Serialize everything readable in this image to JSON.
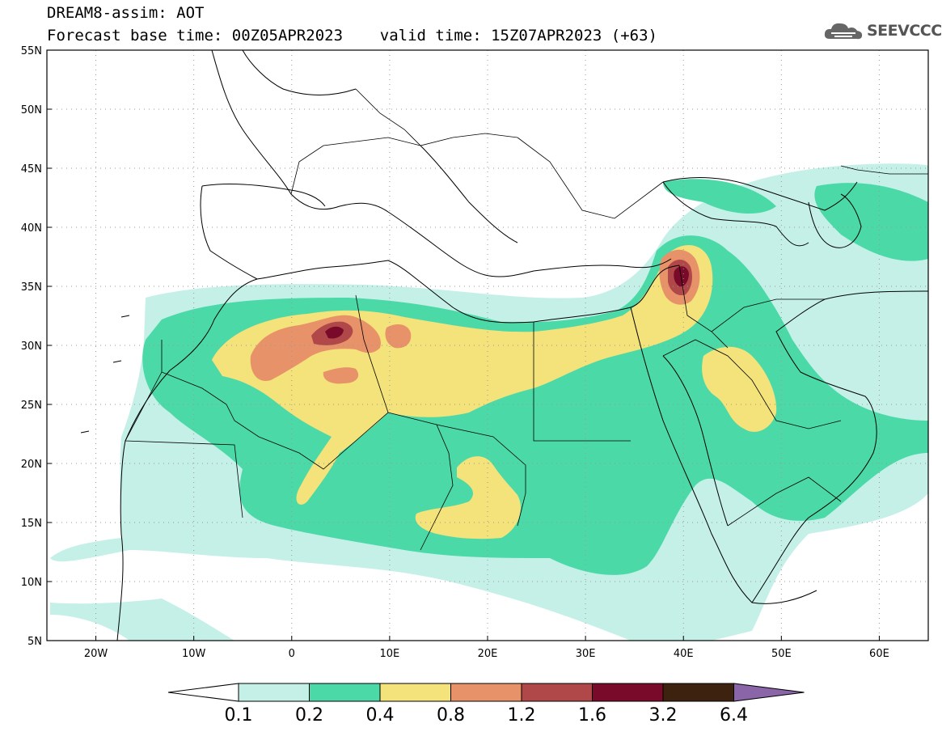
{
  "header": {
    "line1": "DREAM8-assim: AOT",
    "line2": "Forecast base time: 00Z05APR2023    valid time: 15Z07APR2023 (+63)",
    "logo_text": "SEEVCCC",
    "logo_icon": "cloud-logo-icon"
  },
  "map": {
    "lon_labels": [
      "20W",
      "10W",
      "0",
      "10E",
      "20E",
      "30E",
      "40E",
      "50E",
      "60E"
    ],
    "lat_labels": [
      "55N",
      "50N",
      "45N",
      "40N",
      "35N",
      "30N",
      "25N",
      "20N",
      "15N",
      "10N",
      "5N"
    ],
    "lon_range": [
      -25,
      65
    ],
    "lat_range": [
      5,
      55
    ],
    "grid": "dotted"
  },
  "colorbar": {
    "labels": [
      "0.1",
      "0.2",
      "0.4",
      "0.8",
      "1.2",
      "1.6",
      "3.2",
      "6.4"
    ],
    "colors": [
      "#ffffff",
      "#c4f0e8",
      "#4cd9a8",
      "#f4e27a",
      "#e8926a",
      "#b0484a",
      "#7a0a2a",
      "#3e2210",
      "#8a66a8"
    ]
  }
}
